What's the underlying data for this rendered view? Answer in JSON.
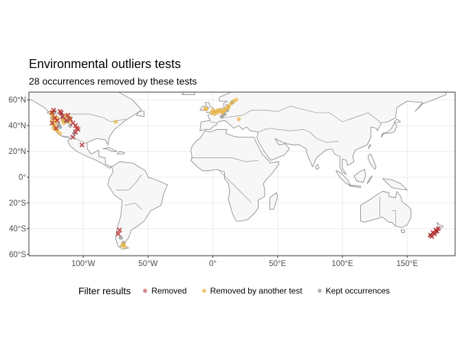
{
  "title": "Environmental outliers tests",
  "subtitle": "28 occurrences removed by these tests",
  "map": {
    "type": "world-map",
    "lon_range": [
      -142,
      187
    ],
    "lat_range": [
      -61,
      66
    ],
    "land_color": "#f7f7f7",
    "border_color": "#7f7f7f",
    "grid": true,
    "lat_ticks": [
      {
        "value": 60,
        "label": "60°N"
      },
      {
        "value": 40,
        "label": "40°N"
      },
      {
        "value": 20,
        "label": "20°N"
      },
      {
        "value": 0,
        "label": "0°"
      },
      {
        "value": -20,
        "label": "20°S"
      },
      {
        "value": -40,
        "label": "40°S"
      },
      {
        "value": -60,
        "label": "60°S"
      }
    ],
    "lon_ticks": [
      {
        "value": -100,
        "label": "100°W"
      },
      {
        "value": -50,
        "label": "50°W"
      },
      {
        "value": 0,
        "label": "0°"
      },
      {
        "value": 50,
        "label": "50°E"
      },
      {
        "value": 100,
        "label": "100°E"
      },
      {
        "value": 150,
        "label": "150°E"
      }
    ]
  },
  "colors": {
    "removed": "#b22222",
    "removed_by_another_test": "#e8b545",
    "kept": "#8c8c8c"
  },
  "legend": {
    "title": "Filter results",
    "items": [
      {
        "label": "Removed",
        "color": "#d98a8a"
      },
      {
        "label": "Removed by another test",
        "color": "#f0c97a"
      },
      {
        "label": "Kept occurrences",
        "color": "#b3b3b3"
      }
    ]
  },
  "chart_data": {
    "type": "scatter",
    "x_label": "",
    "y_label": "",
    "series": [
      {
        "name": "Removed",
        "marker": "x",
        "color": "#b22222",
        "points": [
          [
            -123,
            52
          ],
          [
            -118,
            51
          ],
          [
            -117,
            50
          ],
          [
            -112,
            48
          ],
          [
            -110,
            45
          ],
          [
            -106,
            40
          ],
          [
            -105,
            38
          ],
          [
            -104,
            37
          ],
          [
            -108,
            42
          ],
          [
            -113,
            44
          ],
          [
            -120,
            44
          ],
          [
            -122,
            46
          ],
          [
            -124,
            50
          ],
          [
            -116,
            47
          ],
          [
            -108,
            31
          ],
          [
            -101,
            25
          ],
          [
            -124,
            42
          ],
          [
            -106,
            35
          ],
          [
            -72,
            -41
          ],
          [
            -73,
            -44
          ],
          [
            170,
            -43
          ],
          [
            171,
            -44
          ],
          [
            172,
            -41
          ],
          [
            173,
            -42
          ],
          [
            168,
            -45
          ],
          [
            169,
            -46
          ],
          [
            174,
            -40
          ],
          [
            -121,
            38
          ]
        ]
      },
      {
        "name": "Removed by another test",
        "marker": "o",
        "color": "#e8b545",
        "points": [
          [
            -125,
            50
          ],
          [
            -124,
            48
          ],
          [
            -123,
            47
          ],
          [
            -122,
            45
          ],
          [
            -121,
            43
          ],
          [
            -124,
            44
          ],
          [
            -123,
            41
          ],
          [
            -122,
            40
          ],
          [
            -121,
            37
          ],
          [
            -123,
            38
          ],
          [
            -120,
            36
          ],
          [
            -118,
            34
          ],
          [
            -110,
            46
          ],
          [
            -113,
            48
          ],
          [
            -116,
            44
          ],
          [
            -115,
            42
          ],
          [
            -114,
            46
          ],
          [
            -111,
            43
          ],
          [
            -75,
            43
          ],
          [
            -6,
            53
          ],
          [
            -5,
            53
          ],
          [
            0,
            52
          ],
          [
            2,
            51
          ],
          [
            4,
            52
          ],
          [
            5,
            51
          ],
          [
            6,
            52
          ],
          [
            3,
            50
          ],
          [
            1,
            49
          ],
          [
            -1,
            50
          ],
          [
            7,
            50
          ],
          [
            8,
            51
          ],
          [
            9,
            52
          ],
          [
            10,
            53
          ],
          [
            12,
            55
          ],
          [
            14,
            57
          ],
          [
            16,
            59
          ],
          [
            18,
            60
          ],
          [
            12,
            54
          ],
          [
            20,
            45
          ],
          [
            -69,
            -52
          ],
          [
            -70,
            -53
          ],
          [
            -68,
            -54
          ],
          [
            -120,
            46
          ]
        ]
      },
      {
        "name": "Kept occurrences",
        "marker": "o",
        "color": "#8c8c8c",
        "points": [
          [
            -115,
            44
          ],
          [
            -117,
            49
          ],
          [
            -118,
            39
          ],
          [
            -111,
            46
          ],
          [
            -113,
            43
          ],
          [
            -122,
            51
          ],
          [
            -124,
            46
          ],
          [
            -119,
            41
          ],
          [
            -107,
            34
          ],
          [
            -110,
            40
          ],
          [
            -116,
            46
          ],
          [
            7,
            47
          ],
          [
            9,
            49
          ],
          [
            11,
            52
          ],
          [
            15,
            58
          ],
          [
            -71,
            -47
          ],
          [
            -69,
            -51
          ],
          [
            172,
            -43
          ]
        ]
      }
    ]
  }
}
